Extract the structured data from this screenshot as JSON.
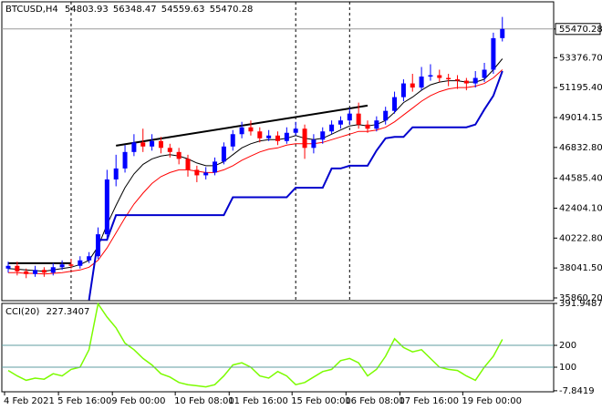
{
  "chart_data": [
    {
      "type": "candlestick",
      "title": "BTCUSD,H4",
      "categories": [
        "4 Feb 2021",
        null,
        null,
        null,
        null,
        null,
        "5 Feb 16:00",
        null,
        null,
        null,
        null,
        null,
        "9 Feb 00:00",
        null,
        null,
        null,
        null,
        null,
        null,
        "10 Feb 08:00",
        null,
        null,
        null,
        null,
        null,
        "11 Feb 16:00",
        null,
        null,
        null,
        null,
        null,
        null,
        "15 Feb 00:00",
        null,
        null,
        null,
        null,
        null,
        "16 Feb 08:00",
        null,
        null,
        null,
        null,
        null,
        "17 Feb 16:00",
        null,
        null,
        null,
        null,
        null,
        null,
        "19 Feb 00:00",
        null,
        null,
        null,
        null
      ],
      "open": [
        38000,
        38200,
        37800,
        37600,
        37900,
        37700,
        38100,
        38300,
        38200,
        38600,
        38900,
        40500,
        44500,
        45300,
        46500,
        47200,
        46900,
        47300,
        46800,
        46500,
        46000,
        45200,
        44800,
        45000,
        45800,
        46900,
        47800,
        48300,
        48000,
        47500,
        47700,
        47300,
        47900,
        48200,
        46800,
        47400,
        48000,
        48500,
        48800,
        49300,
        48500,
        48200,
        48800,
        49500,
        50500,
        51500,
        51200,
        52000,
        52100,
        51900,
        51800,
        51700,
        51500,
        51900,
        52500,
        54803.93
      ],
      "high": [
        38500,
        38500,
        38000,
        38200,
        38100,
        38400,
        38600,
        38700,
        38900,
        39200,
        41000,
        45200,
        46300,
        47000,
        47800,
        48200,
        47800,
        47600,
        47100,
        46800,
        46300,
        45500,
        45400,
        46100,
        47200,
        48100,
        48700,
        48800,
        48300,
        48100,
        48000,
        48300,
        48700,
        48500,
        47800,
        48300,
        48800,
        49100,
        49700,
        50100,
        48800,
        49100,
        49800,
        50900,
        51800,
        52200,
        52700,
        52900,
        52500,
        52200,
        52100,
        51900,
        52400,
        53000,
        55200,
        56348.47
      ],
      "low": [
        37700,
        37500,
        37300,
        37400,
        37400,
        37500,
        37900,
        38000,
        38000,
        38400,
        38700,
        40200,
        44000,
        45000,
        46200,
        46500,
        46600,
        46400,
        46100,
        45600,
        44700,
        44300,
        44500,
        44800,
        45600,
        46600,
        47500,
        47700,
        47200,
        47300,
        47000,
        47100,
        47700,
        46000,
        46400,
        47100,
        47800,
        48200,
        48500,
        48200,
        47900,
        48000,
        48500,
        49300,
        50200,
        50900,
        51000,
        51700,
        51600,
        51300,
        51100,
        51000,
        51200,
        51600,
        52200,
        54559.63
      ],
      "close": [
        38200,
        37800,
        37600,
        37900,
        37700,
        38100,
        38300,
        38200,
        38600,
        38900,
        40500,
        44500,
        45300,
        46500,
        47200,
        46900,
        47300,
        46800,
        46500,
        46000,
        45200,
        44800,
        45000,
        45800,
        46900,
        47800,
        48300,
        48000,
        47500,
        47700,
        47300,
        47900,
        48200,
        46800,
        47400,
        48000,
        48500,
        48800,
        49300,
        48500,
        48200,
        48800,
        49500,
        50500,
        51500,
        51200,
        52000,
        52100,
        51900,
        51800,
        51700,
        51500,
        51900,
        52500,
        54800,
        55470.28
      ],
      "up_color": "#0000ff",
      "down_color": "#ff0000",
      "series": [
        {
          "color": "#000000",
          "values": [
            38000,
            37950,
            37900,
            37850,
            37800,
            37900,
            38000,
            38100,
            38300,
            38600,
            39600,
            41200,
            42600,
            43900,
            44900,
            45600,
            46000,
            46200,
            46300,
            46200,
            46000,
            45700,
            45500,
            45500,
            45800,
            46300,
            46800,
            47100,
            47300,
            47400,
            47400,
            47500,
            47700,
            47500,
            47400,
            47500,
            47800,
            48100,
            48400,
            48500,
            48400,
            48500,
            48800,
            49400,
            50100,
            50500,
            51000,
            51400,
            51600,
            51700,
            51700,
            51600,
            51600,
            51800,
            52500,
            53300
          ]
        },
        {
          "color": "#ff0000",
          "values": [
            37700,
            37700,
            37650,
            37650,
            37600,
            37650,
            37700,
            37800,
            37900,
            38100,
            38600,
            39500,
            40600,
            41700,
            42700,
            43500,
            44200,
            44700,
            45000,
            45200,
            45200,
            45100,
            45000,
            45000,
            45200,
            45500,
            45900,
            46200,
            46500,
            46700,
            46800,
            47000,
            47100,
            47100,
            47100,
            47200,
            47400,
            47600,
            47800,
            48000,
            48000,
            48100,
            48300,
            48700,
            49200,
            49700,
            50200,
            50600,
            50900,
            51100,
            51200,
            51200,
            51300,
            51500,
            51900,
            52500
          ]
        },
        {
          "color": "#0000cd",
          "values": [
            null,
            null,
            null,
            null,
            null,
            null,
            null,
            null,
            null,
            35700,
            40100,
            40100,
            41900,
            41900,
            41900,
            41900,
            41900,
            41900,
            41900,
            41900,
            41900,
            41900,
            41900,
            41900,
            41900,
            43200,
            43200,
            43200,
            43200,
            43200,
            43200,
            43200,
            43900,
            43900,
            43900,
            43900,
            45300,
            45300,
            45500,
            45500,
            45500,
            46600,
            47500,
            47600,
            47600,
            48300,
            48300,
            48300,
            48300,
            48300,
            48300,
            48300,
            48500,
            49600,
            50600,
            52400
          ]
        }
      ],
      "trendlines": [
        {
          "color": "#000000",
          "x": [
            0,
            7
          ],
          "values": [
            38390,
            38390
          ]
        },
        {
          "color": "#000000",
          "x": [
            12,
            40
          ],
          "values": [
            46960,
            49880
          ]
        }
      ],
      "separators": [
        7,
        32,
        38
      ],
      "ylim": [
        35660,
        57450
      ],
      "yticks": [
        55470.28,
        {
          "value": 53376.7,
          "label": "53376.70"
        },
        {
          "value": 51195.4,
          "label": "51195.40"
        },
        49014.15,
        {
          "value": 46832.8,
          "label": "46832.80"
        },
        {
          "value": 44585.4,
          "label": "44585.40"
        },
        {
          "value": 42404.1,
          "label": "42404.10"
        },
        {
          "value": 40222.8,
          "label": "40222.80"
        },
        {
          "value": 38041.5,
          "label": "38041.50"
        },
        {
          "value": 35860.2,
          "label": "35860.20"
        }
      ]
    },
    {
      "type": "line",
      "title": "CCI(20)",
      "color": "#7cfc00",
      "values": [
        85,
        60,
        40,
        50,
        45,
        70,
        60,
        90,
        100,
        180,
        390,
        330,
        280,
        210,
        180,
        140,
        110,
        70,
        55,
        30,
        20,
        15,
        10,
        20,
        60,
        110,
        120,
        100,
        60,
        50,
        80,
        60,
        20,
        30,
        55,
        80,
        90,
        130,
        140,
        120,
        60,
        90,
        150,
        230,
        190,
        170,
        180,
        140,
        100,
        90,
        85,
        60,
        40,
        100,
        150,
        227.3407
      ],
      "levels": [
        200,
        100
      ],
      "level_color": "#5f9ea0",
      "ylim": [
        -12.5,
        391.9487
      ],
      "yticks": [
        391.9487,
        200,
        100,
        -7.8419
      ]
    }
  ]
}
